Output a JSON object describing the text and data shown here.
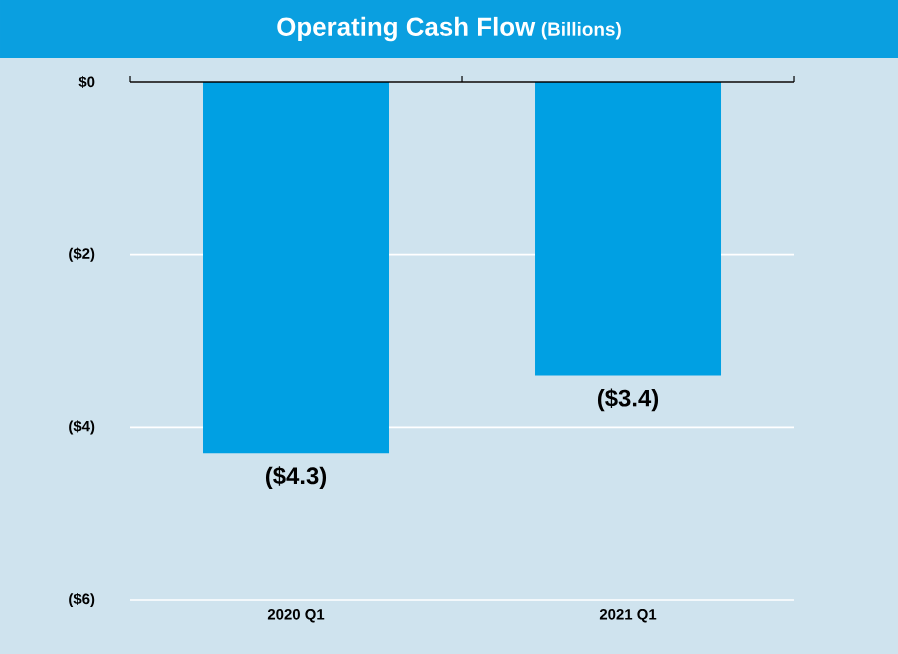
{
  "chart_data": {
    "type": "bar",
    "title": "Operating Cash Flow",
    "subtitle": "(Billions)",
    "categories": [
      "2020 Q1",
      "2021 Q1"
    ],
    "values": [
      -4.3,
      -3.4
    ],
    "value_labels": [
      "($4.3)",
      "($3.4)"
    ],
    "color": "#00a0e3",
    "ylim": [
      -6,
      0
    ],
    "yticks": [
      {
        "value": 0,
        "label": "$0"
      },
      {
        "value": -2,
        "label": "($2)"
      },
      {
        "value": -4,
        "label": "($4)"
      },
      {
        "value": -6,
        "label": "($6)"
      }
    ],
    "grid": "y"
  }
}
